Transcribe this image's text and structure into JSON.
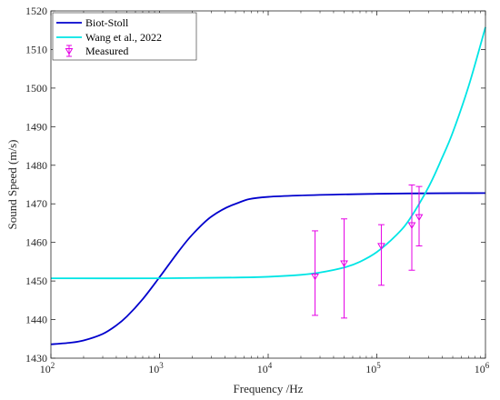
{
  "chart_data": {
    "type": "line",
    "xlabel": "Frequency /Hz",
    "ylabel": "Sound Speed (m/s)",
    "xscale": "log",
    "xlim": [
      100,
      1000000
    ],
    "ylim": [
      1430,
      1520
    ],
    "x_ticks": [
      {
        "value": 100,
        "base": "10",
        "exp": "2"
      },
      {
        "value": 1000,
        "base": "10",
        "exp": "3"
      },
      {
        "value": 10000,
        "base": "10",
        "exp": "4"
      },
      {
        "value": 100000,
        "base": "10",
        "exp": "5"
      },
      {
        "value": 1000000,
        "base": "10",
        "exp": "6"
      }
    ],
    "y_ticks": [
      1430,
      1440,
      1450,
      1460,
      1470,
      1480,
      1490,
      1500,
      1510,
      1520
    ],
    "grid": false,
    "legend_position": "top-left",
    "series": [
      {
        "name": "Biot-Stoll",
        "color": "#0000cd",
        "x": [
          100,
          150,
          200,
          300,
          400,
          500,
          700,
          1000,
          1500,
          2000,
          3000,
          5000,
          10000,
          100000,
          1000000
        ],
        "y": [
          1433.6,
          1434.0,
          1434.6,
          1436.3,
          1438.5,
          1440.8,
          1445.3,
          1451.0,
          1457.7,
          1462.0,
          1466.7,
          1470.0,
          1471.8,
          1472.6,
          1472.8
        ]
      },
      {
        "name": "Wang et al., 2022",
        "color": "#00e5e5",
        "x": [
          100,
          1000,
          5000,
          10000,
          20000,
          30000,
          50000,
          70000,
          100000,
          150000,
          200000,
          300000,
          400000,
          500000,
          700000,
          1000000
        ],
        "y": [
          1450.7,
          1450.7,
          1450.9,
          1451.1,
          1451.6,
          1452.2,
          1453.5,
          1455.0,
          1457.5,
          1461.8,
          1466.0,
          1474.4,
          1482.0,
          1488.5,
          1500.5,
          1515.8
        ]
      }
    ],
    "measured": {
      "name": "Measured",
      "color": "#e600e6",
      "points": [
        {
          "x": 27000,
          "y": 1451.1,
          "low": 1441.1,
          "high": 1463.0
        },
        {
          "x": 50000,
          "y": 1454.5,
          "low": 1440.4,
          "high": 1466.1
        },
        {
          "x": 110000,
          "y": 1459.0,
          "low": 1448.9,
          "high": 1464.6
        },
        {
          "x": 210000,
          "y": 1464.4,
          "low": 1452.8,
          "high": 1474.9
        },
        {
          "x": 245000,
          "y": 1466.5,
          "low": 1459.1,
          "high": 1474.5
        }
      ]
    }
  }
}
